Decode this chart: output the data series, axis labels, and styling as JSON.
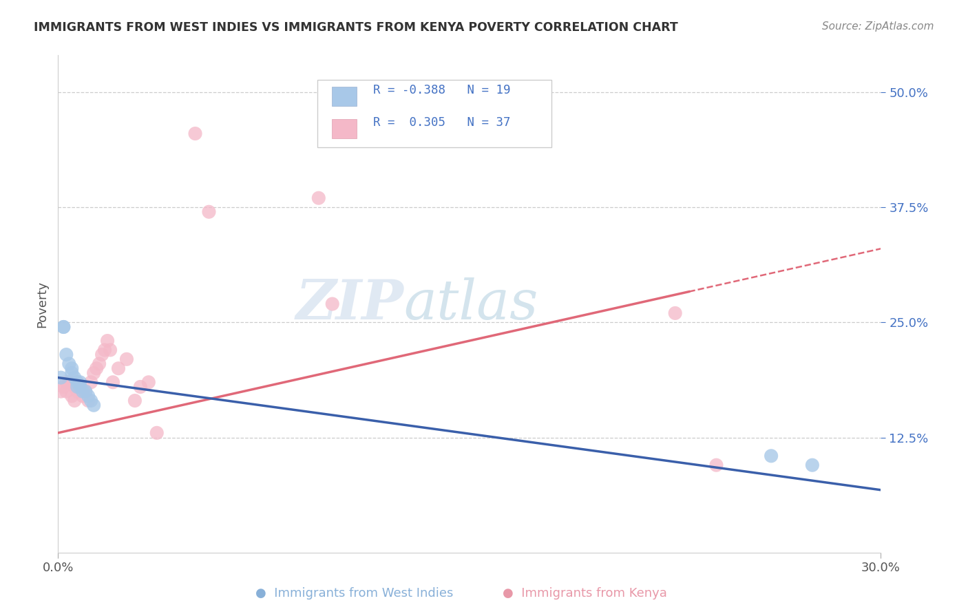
{
  "title": "IMMIGRANTS FROM WEST INDIES VS IMMIGRANTS FROM KENYA POVERTY CORRELATION CHART",
  "source": "Source: ZipAtlas.com",
  "ylabel": "Poverty",
  "xmin": 0.0,
  "xmax": 0.3,
  "ymin": 0.0,
  "ymax": 0.54,
  "legend_r1": "R = -0.388",
  "legend_n1": "N = 19",
  "legend_r2": "R =  0.305",
  "legend_n2": "N = 37",
  "color_blue": "#a8c8e8",
  "color_pink": "#f4b8c8",
  "color_blue_line": "#3a5faa",
  "color_pink_line": "#e06878",
  "color_legend_text": "#4472c4",
  "watermark_zip": "ZIP",
  "watermark_atlas": "atlas",
  "ytick_positions": [
    0.125,
    0.25,
    0.375,
    0.5
  ],
  "ytick_labels": [
    "12.5%",
    "25.0%",
    "37.5%",
    "50.0%"
  ],
  "wi_x": [
    0.001,
    0.002,
    0.002,
    0.003,
    0.004,
    0.005,
    0.005,
    0.006,
    0.007,
    0.007,
    0.008,
    0.008,
    0.009,
    0.01,
    0.011,
    0.012,
    0.013,
    0.26,
    0.275
  ],
  "wi_y": [
    0.19,
    0.245,
    0.245,
    0.215,
    0.205,
    0.2,
    0.195,
    0.19,
    0.185,
    0.18,
    0.185,
    0.18,
    0.175,
    0.175,
    0.17,
    0.165,
    0.16,
    0.105,
    0.095
  ],
  "ke_x": [
    0.001,
    0.002,
    0.003,
    0.003,
    0.004,
    0.005,
    0.005,
    0.006,
    0.006,
    0.007,
    0.007,
    0.008,
    0.009,
    0.009,
    0.01,
    0.011,
    0.012,
    0.013,
    0.014,
    0.015,
    0.016,
    0.017,
    0.018,
    0.019,
    0.02,
    0.022,
    0.025,
    0.028,
    0.03,
    0.033,
    0.036,
    0.05,
    0.055,
    0.095,
    0.1,
    0.225,
    0.24
  ],
  "ke_y": [
    0.175,
    0.18,
    0.175,
    0.185,
    0.185,
    0.17,
    0.185,
    0.165,
    0.18,
    0.185,
    0.175,
    0.18,
    0.17,
    0.175,
    0.175,
    0.165,
    0.185,
    0.195,
    0.2,
    0.205,
    0.215,
    0.22,
    0.23,
    0.22,
    0.185,
    0.2,
    0.21,
    0.165,
    0.18,
    0.185,
    0.13,
    0.455,
    0.37,
    0.385,
    0.27,
    0.26,
    0.095
  ],
  "wi_line_x0": 0.0,
  "wi_line_x1": 0.3,
  "wi_line_y0": 0.19,
  "wi_line_y1": 0.068,
  "ke_line_x0": 0.0,
  "ke_line_x1": 0.3,
  "ke_line_y0": 0.13,
  "ke_line_y1": 0.33
}
